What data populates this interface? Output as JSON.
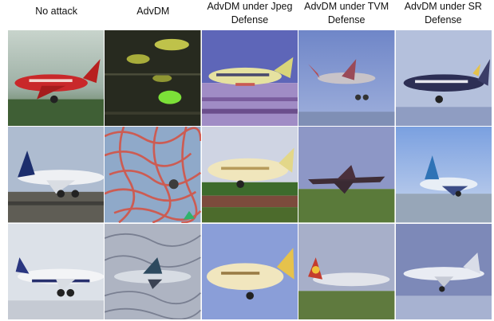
{
  "columns": [
    {
      "title": "No attack"
    },
    {
      "title": "AdvDM"
    },
    {
      "title": "AdvDM under Jpeg Defense"
    },
    {
      "title": "AdvDM under TVM Defense"
    },
    {
      "title": "AdvDM under SR Defense"
    }
  ]
}
